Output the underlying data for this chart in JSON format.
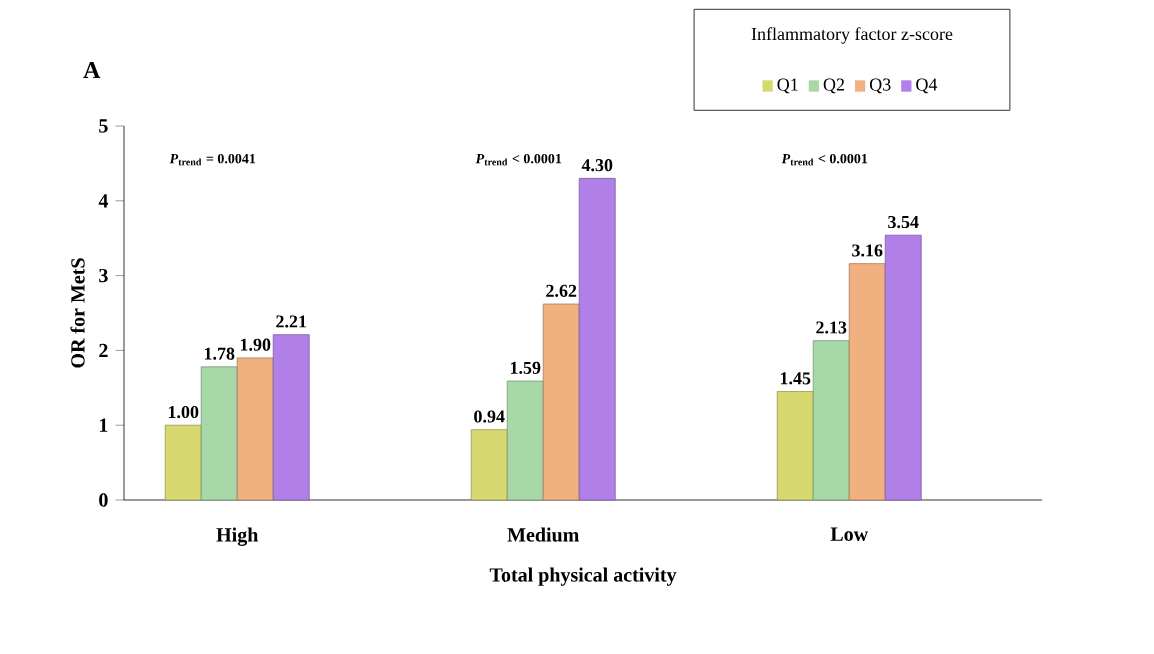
{
  "chart_data": {
    "type": "bar",
    "title": "A",
    "xlabel": "Total physical activity",
    "ylabel": "OR for MetS",
    "legend_title": "Inflammatory factor z-score",
    "categories": [
      "High",
      "Medium",
      "Low"
    ],
    "series": [
      {
        "name": "Q1",
        "color": "#d8d870",
        "values": [
          1.0,
          0.94,
          1.45
        ],
        "value_labels": [
          "1.00",
          "0.94",
          "1.45"
        ]
      },
      {
        "name": "Q2",
        "color": "#a8d8a8",
        "values": [
          1.78,
          1.59,
          2.13
        ],
        "value_labels": [
          "1.78",
          "1.59",
          "2.13"
        ]
      },
      {
        "name": "Q3",
        "color": "#f0b080",
        "values": [
          1.9,
          2.62,
          3.16
        ],
        "value_labels": [
          "1.90",
          "2.62",
          "3.16"
        ]
      },
      {
        "name": "Q4",
        "color": "#b080e8",
        "values": [
          2.21,
          4.3,
          3.54
        ],
        "value_labels": [
          "2.21",
          "4.30",
          "3.54"
        ]
      }
    ],
    "ylim": [
      0,
      5
    ],
    "yticks": [
      0,
      1,
      2,
      3,
      4,
      5
    ],
    "legend": "top right",
    "annotations": [
      "*P*$_{trend}$ = 0.0041",
      "*P*$_{trend}$ < 0.0001",
      "*P*$_{trend}$ < 0.0001"
    ]
  }
}
